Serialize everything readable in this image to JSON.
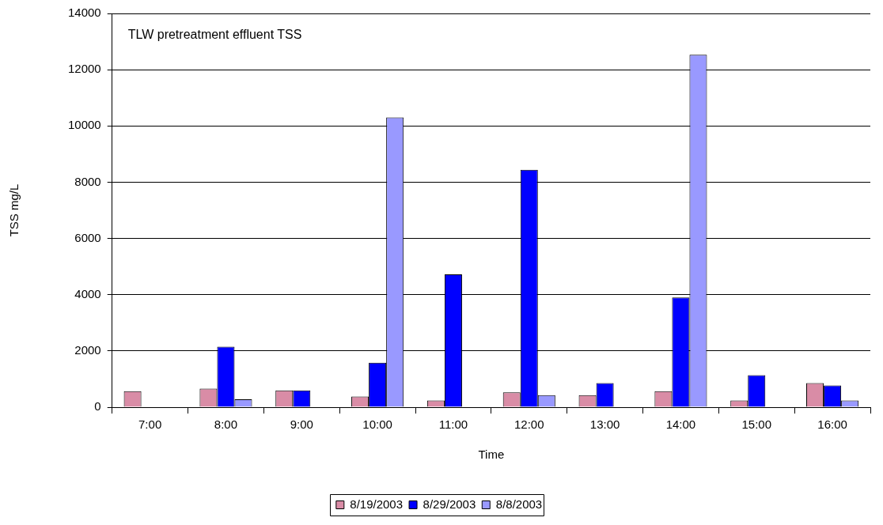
{
  "chart_data": {
    "type": "bar",
    "title": "TLW pretreatment effluent TSS",
    "xlabel": "Time",
    "ylabel": "TSS mg/L",
    "categories": [
      "7:00",
      "8:00",
      "9:00",
      "10:00",
      "11:00",
      "12:00",
      "13:00",
      "14:00",
      "15:00",
      "16:00"
    ],
    "series": [
      {
        "name": "8/19/2003",
        "color": "#d98ca6",
        "values": [
          570,
          660,
          600,
          380,
          240,
          530,
          430,
          570,
          240,
          860
        ]
      },
      {
        "name": "8/29/2003",
        "color": "#0000ff",
        "values": [
          null,
          2150,
          600,
          1580,
          4720,
          8440,
          860,
          3900,
          1140,
          770
        ]
      },
      {
        "name": "8/8/2003",
        "color": "#9999ff",
        "values": [
          null,
          280,
          null,
          10300,
          null,
          430,
          null,
          12530,
          null,
          240
        ]
      }
    ],
    "ylim": [
      0,
      14000
    ],
    "yticks": [
      0,
      2000,
      4000,
      6000,
      8000,
      10000,
      12000,
      14000
    ],
    "grid": "y",
    "legend": "bottom"
  }
}
